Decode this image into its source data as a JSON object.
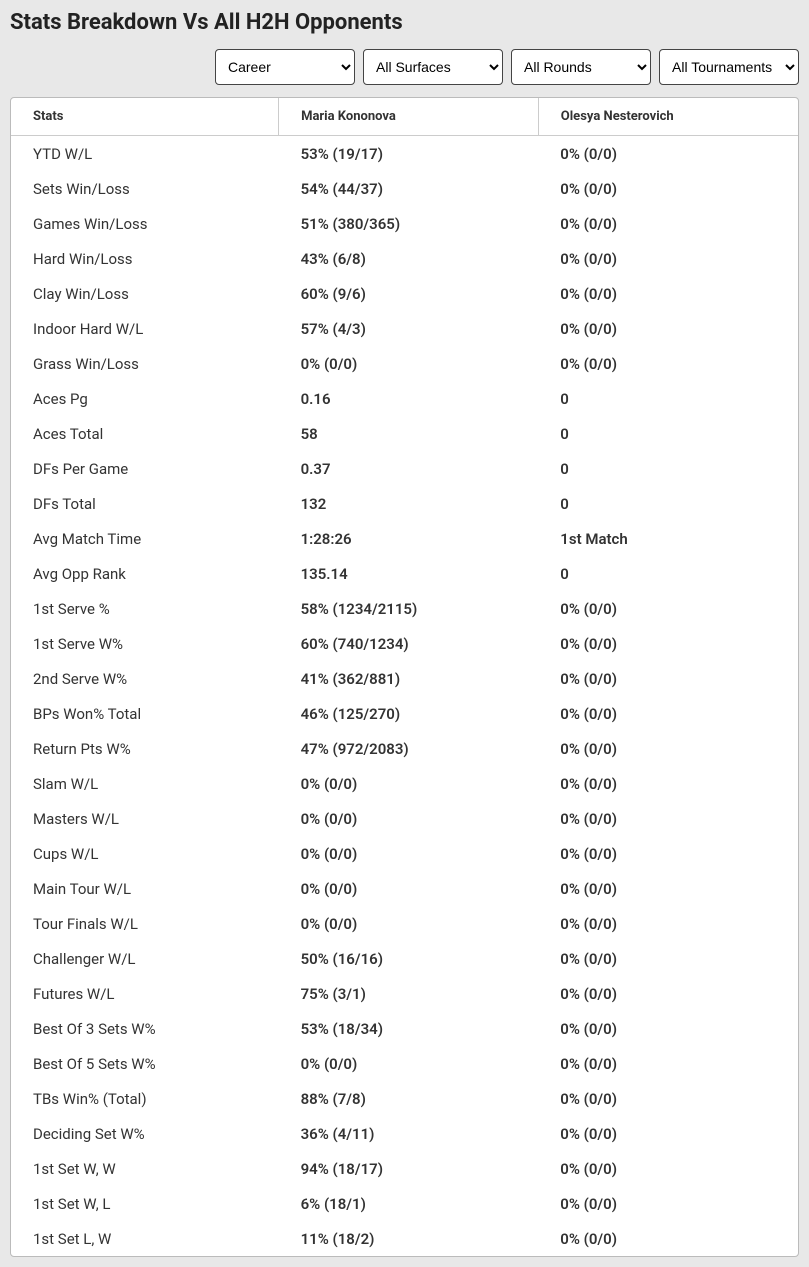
{
  "title": "Stats Breakdown Vs All H2H Opponents",
  "filters": {
    "period": {
      "selected": "Career"
    },
    "surface": {
      "selected": "All Surfaces"
    },
    "round": {
      "selected": "All Rounds"
    },
    "tournament": {
      "selected": "All Tournaments"
    }
  },
  "table": {
    "headers": {
      "stats": "Stats",
      "player1": "Maria Kononova",
      "player2": "Olesya Nesterovich"
    },
    "rows": [
      {
        "stat": "YTD W/L",
        "p1": "53% (19/17)",
        "p2": "0% (0/0)"
      },
      {
        "stat": "Sets Win/Loss",
        "p1": "54% (44/37)",
        "p2": "0% (0/0)"
      },
      {
        "stat": "Games Win/Loss",
        "p1": "51% (380/365)",
        "p2": "0% (0/0)"
      },
      {
        "stat": "Hard Win/Loss",
        "p1": "43% (6/8)",
        "p2": "0% (0/0)"
      },
      {
        "stat": "Clay Win/Loss",
        "p1": "60% (9/6)",
        "p2": "0% (0/0)"
      },
      {
        "stat": "Indoor Hard W/L",
        "p1": "57% (4/3)",
        "p2": "0% (0/0)"
      },
      {
        "stat": "Grass Win/Loss",
        "p1": "0% (0/0)",
        "p2": "0% (0/0)"
      },
      {
        "stat": "Aces Pg",
        "p1": "0.16",
        "p2": "0"
      },
      {
        "stat": "Aces Total",
        "p1": "58",
        "p2": "0"
      },
      {
        "stat": "DFs Per Game",
        "p1": "0.37",
        "p2": "0"
      },
      {
        "stat": "DFs Total",
        "p1": "132",
        "p2": "0"
      },
      {
        "stat": "Avg Match Time",
        "p1": "1:28:26",
        "p2": "1st Match"
      },
      {
        "stat": "Avg Opp Rank",
        "p1": "135.14",
        "p2": "0"
      },
      {
        "stat": "1st Serve %",
        "p1": "58% (1234/2115)",
        "p2": "0% (0/0)"
      },
      {
        "stat": "1st Serve W%",
        "p1": "60% (740/1234)",
        "p2": "0% (0/0)"
      },
      {
        "stat": "2nd Serve W%",
        "p1": "41% (362/881)",
        "p2": "0% (0/0)"
      },
      {
        "stat": "BPs Won% Total",
        "p1": "46% (125/270)",
        "p2": "0% (0/0)"
      },
      {
        "stat": "Return Pts W%",
        "p1": "47% (972/2083)",
        "p2": "0% (0/0)"
      },
      {
        "stat": "Slam W/L",
        "p1": "0% (0/0)",
        "p2": "0% (0/0)"
      },
      {
        "stat": "Masters W/L",
        "p1": "0% (0/0)",
        "p2": "0% (0/0)"
      },
      {
        "stat": "Cups W/L",
        "p1": "0% (0/0)",
        "p2": "0% (0/0)"
      },
      {
        "stat": "Main Tour W/L",
        "p1": "0% (0/0)",
        "p2": "0% (0/0)"
      },
      {
        "stat": "Tour Finals W/L",
        "p1": "0% (0/0)",
        "p2": "0% (0/0)"
      },
      {
        "stat": "Challenger W/L",
        "p1": "50% (16/16)",
        "p2": "0% (0/0)"
      },
      {
        "stat": "Futures W/L",
        "p1": "75% (3/1)",
        "p2": "0% (0/0)"
      },
      {
        "stat": "Best Of 3 Sets W%",
        "p1": "53% (18/34)",
        "p2": "0% (0/0)"
      },
      {
        "stat": "Best Of 5 Sets W%",
        "p1": "0% (0/0)",
        "p2": "0% (0/0)"
      },
      {
        "stat": "TBs Win% (Total)",
        "p1": "88% (7/8)",
        "p2": "0% (0/0)"
      },
      {
        "stat": "Deciding Set W%",
        "p1": "36% (4/11)",
        "p2": "0% (0/0)"
      },
      {
        "stat": "1st Set W, W",
        "p1": "94% (18/17)",
        "p2": "0% (0/0)"
      },
      {
        "stat": "1st Set W, L",
        "p1": "6% (18/1)",
        "p2": "0% (0/0)"
      },
      {
        "stat": "1st Set L, W",
        "p1": "11% (18/2)",
        "p2": "0% (0/0)"
      }
    ]
  }
}
